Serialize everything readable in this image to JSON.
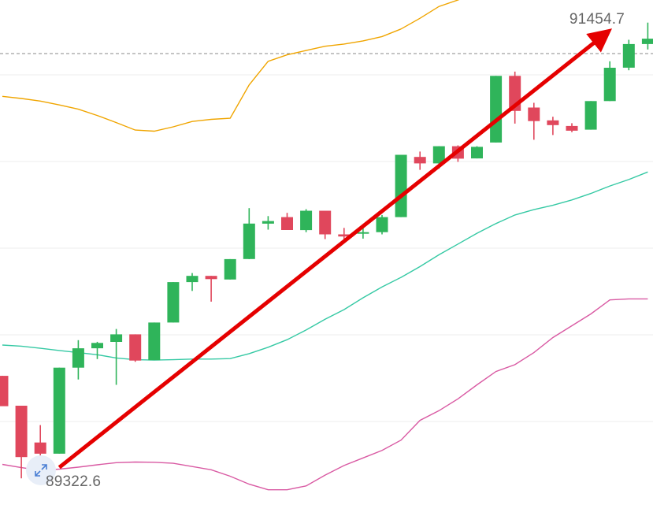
{
  "chart_data": {
    "type": "candlestick",
    "max_price_label": "91454.7",
    "min_price_label": "89322.6",
    "y_range": [
      89160,
      91560
    ],
    "current_price": 91454.7,
    "colors": {
      "up": "#2fb45a",
      "down": "#e0475c",
      "upper_band": "#f0a500",
      "middle_band": "#35c9a4",
      "lower_band": "#d95aa3",
      "trend_arrow": "#e50000",
      "grid": "#eeeeee"
    },
    "candles": [
      {
        "o": 89812,
        "h": 89812,
        "l": 89671,
        "c": 89671
      },
      {
        "o": 89673,
        "h": 89673,
        "l": 89335,
        "c": 89434
      },
      {
        "o": 89502,
        "h": 89583,
        "l": 89420,
        "c": 89450
      },
      {
        "o": 89450,
        "h": 89850,
        "l": 89450,
        "c": 89850
      },
      {
        "o": 89850,
        "h": 89978,
        "l": 89795,
        "c": 89940
      },
      {
        "o": 89940,
        "h": 89970,
        "l": 89890,
        "c": 89965
      },
      {
        "o": 89970,
        "h": 90030,
        "l": 89770,
        "c": 90005
      },
      {
        "o": 90005,
        "h": 90005,
        "l": 89877,
        "c": 89883
      },
      {
        "o": 89885,
        "h": 90060,
        "l": 89885,
        "c": 90060
      },
      {
        "o": 90060,
        "h": 90248,
        "l": 90060,
        "c": 90248
      },
      {
        "o": 90248,
        "h": 90290,
        "l": 90207,
        "c": 90277
      },
      {
        "o": 90277,
        "h": 90277,
        "l": 90157,
        "c": 90262
      },
      {
        "o": 90260,
        "h": 90355,
        "l": 90260,
        "c": 90355
      },
      {
        "o": 90355,
        "h": 90592,
        "l": 90355,
        "c": 90520
      },
      {
        "o": 90520,
        "h": 90555,
        "l": 90492,
        "c": 90532
      },
      {
        "o": 90550,
        "h": 90570,
        "l": 90490,
        "c": 90490
      },
      {
        "o": 90490,
        "h": 90587,
        "l": 90480,
        "c": 90580
      },
      {
        "o": 90580,
        "h": 90580,
        "l": 90448,
        "c": 90470
      },
      {
        "o": 90470,
        "h": 90500,
        "l": 90442,
        "c": 90460
      },
      {
        "o": 90478,
        "h": 90515,
        "l": 90450,
        "c": 90480
      },
      {
        "o": 90480,
        "h": 90560,
        "l": 90470,
        "c": 90550
      },
      {
        "o": 90550,
        "h": 90840,
        "l": 90550,
        "c": 90840
      },
      {
        "o": 90830,
        "h": 90855,
        "l": 90770,
        "c": 90800
      },
      {
        "o": 90800,
        "h": 90880,
        "l": 90775,
        "c": 90880
      },
      {
        "o": 90880,
        "h": 90884,
        "l": 90807,
        "c": 90822
      },
      {
        "o": 90823,
        "h": 90880,
        "l": 90823,
        "c": 90877
      },
      {
        "o": 90897,
        "h": 91207,
        "l": 90897,
        "c": 91207
      },
      {
        "o": 91207,
        "h": 91227,
        "l": 90985,
        "c": 91044
      },
      {
        "o": 91060,
        "h": 91082,
        "l": 90910,
        "c": 90997
      },
      {
        "o": 91000,
        "h": 91017,
        "l": 90932,
        "c": 90978
      },
      {
        "o": 90974,
        "h": 90987,
        "l": 90945,
        "c": 90952
      },
      {
        "o": 90957,
        "h": 91090,
        "l": 90957,
        "c": 91090
      },
      {
        "o": 91090,
        "h": 91275,
        "l": 91090,
        "c": 91245
      },
      {
        "o": 91245,
        "h": 91375,
        "l": 91233,
        "c": 91355
      },
      {
        "o": 91355,
        "h": 91455,
        "l": 91330,
        "c": 91380
      }
    ],
    "upper_band": [
      91112,
      91102,
      91090,
      91072,
      91052,
      91023,
      90990,
      90955,
      90950,
      90970,
      90995,
      91005,
      91010,
      91165,
      91275,
      91305,
      91325,
      91345,
      91355,
      91370,
      91390,
      91425,
      91475,
      91530,
      91560,
      91597,
      91667,
      91713,
      91740,
      91750,
      91757,
      91765,
      91797,
      91880,
      91935
    ],
    "middle_band": [
      89955,
      89950,
      89940,
      89930,
      89920,
      89910,
      89895,
      89887,
      89885,
      89887,
      89890,
      89890,
      89892,
      89915,
      89945,
      89980,
      90025,
      90075,
      90120,
      90175,
      90225,
      90270,
      90320,
      90375,
      90425,
      90475,
      90520,
      90560,
      90585,
      90605,
      90630,
      90660,
      90695,
      90725,
      90760
    ],
    "lower_band": [
      89400,
      89385,
      89373,
      89378,
      89387,
      89398,
      89408,
      89411,
      89410,
      89405,
      89390,
      89375,
      89345,
      89308,
      89282,
      89282,
      89300,
      89350,
      89395,
      89430,
      89465,
      89513,
      89605,
      89650,
      89705,
      89770,
      89832,
      89864,
      89920,
      89990,
      90045,
      90100,
      90165,
      90170,
      90170
    ],
    "trend_arrow": {
      "from_index": 3,
      "from_price": 89386,
      "to_index": 31.5,
      "to_price": 91384
    }
  }
}
